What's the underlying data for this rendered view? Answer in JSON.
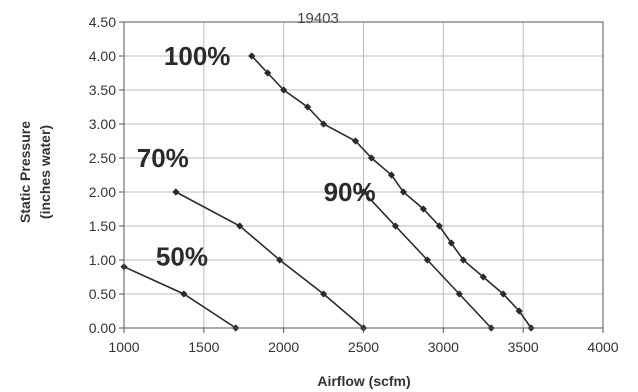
{
  "chart_data": {
    "type": "line",
    "title": "19403",
    "xlabel": "Airflow (scfm)",
    "ylabel_lines": [
      "Static Pressure",
      "(inches water)"
    ],
    "xlim": [
      1000,
      4000
    ],
    "ylim": [
      0,
      4.5
    ],
    "x_ticks": [
      1000,
      1500,
      2000,
      2500,
      3000,
      3500,
      4000
    ],
    "x_tick_labels": [
      "1000",
      "1500",
      "2000",
      "2500",
      "3000",
      "3500",
      "4000"
    ],
    "y_ticks": [
      0,
      0.5,
      1,
      1.5,
      2,
      2.5,
      3,
      3.5,
      4,
      4.5
    ],
    "y_tick_labels": [
      "0.00",
      "0.50",
      "1.00",
      "1.50",
      "2.00",
      "2.50",
      "3.00",
      "3.50",
      "4.00",
      "4.50"
    ],
    "grid": true,
    "legend": "inline",
    "colors": {
      "line": "#2b2b2b",
      "grid": "#bbbbbb",
      "axis": "#555555"
    },
    "series": [
      {
        "name": "100%",
        "points": [
          [
            1800,
            4.0
          ],
          [
            1900,
            3.75
          ],
          [
            2000,
            3.5
          ],
          [
            2150,
            3.25
          ],
          [
            2250,
            3.0
          ],
          [
            2450,
            2.75
          ],
          [
            2550,
            2.5
          ],
          [
            2675,
            2.25
          ],
          [
            2750,
            2.0
          ],
          [
            2875,
            1.75
          ],
          [
            2975,
            1.5
          ],
          [
            3050,
            1.25
          ],
          [
            3125,
            1.0
          ],
          [
            3250,
            0.75
          ],
          [
            3375,
            0.5
          ],
          [
            3475,
            0.25
          ],
          [
            3550,
            0.0
          ]
        ],
        "label_at": [
          1250,
          4.0
        ]
      },
      {
        "name": "90%",
        "points": [
          [
            2500,
            2.0
          ],
          [
            2700,
            1.5
          ],
          [
            2900,
            1.0
          ],
          [
            3100,
            0.5
          ],
          [
            3300,
            0.0
          ]
        ],
        "label_at": [
          2250,
          2.0
        ]
      },
      {
        "name": "70%",
        "points": [
          [
            1325,
            2.0
          ],
          [
            1725,
            1.5
          ],
          [
            1975,
            1.0
          ],
          [
            2250,
            0.5
          ],
          [
            2500,
            0.0
          ]
        ],
        "label_at": [
          1080,
          2.5
        ]
      },
      {
        "name": "50%",
        "points": [
          [
            1000,
            0.9
          ],
          [
            1375,
            0.5
          ],
          [
            1700,
            0.0
          ]
        ],
        "label_at": [
          1200,
          1.05
        ]
      }
    ]
  }
}
